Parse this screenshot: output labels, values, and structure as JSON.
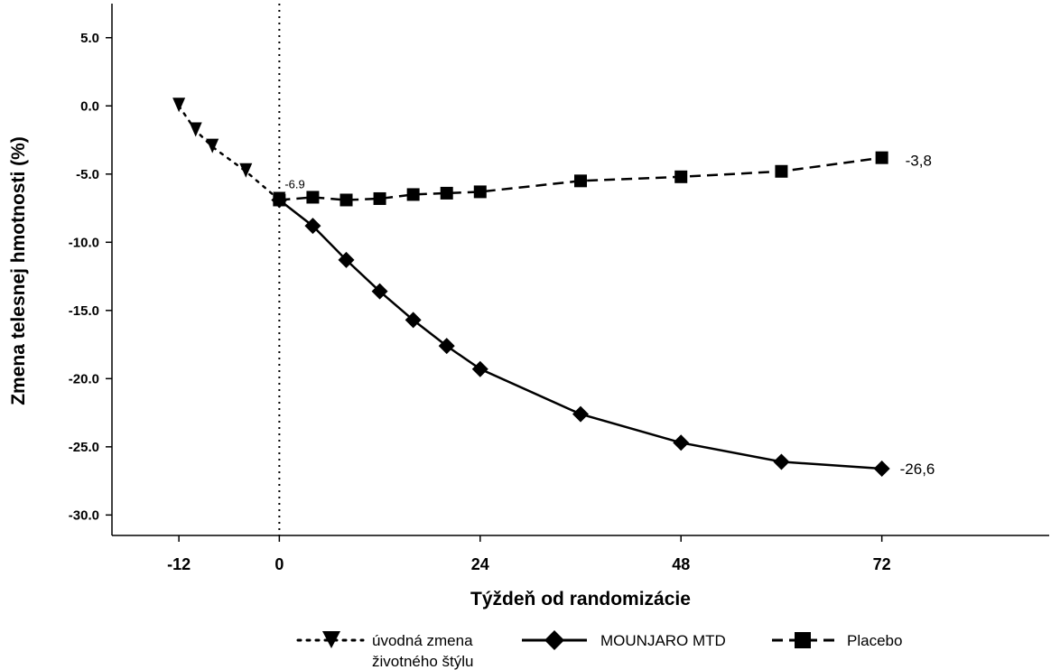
{
  "chart_data": {
    "type": "line",
    "xlabel": "Týždeň od randomizácie",
    "ylabel": "Zmena telesnej hmotnosti (%)",
    "xlim": [
      -20,
      92
    ],
    "ylim": [
      -31.5,
      7.5
    ],
    "x_ticks": [
      {
        "value": -12,
        "label": "-12"
      },
      {
        "value": 0,
        "label": "0"
      },
      {
        "value": 24,
        "label": "24"
      },
      {
        "value": 48,
        "label": "48"
      },
      {
        "value": 72,
        "label": "72"
      }
    ],
    "y_ticks": [
      {
        "value": 5,
        "label": "5.0"
      },
      {
        "value": 0,
        "label": "0.0"
      },
      {
        "value": -5,
        "label": "-5.0"
      },
      {
        "value": -10,
        "label": "-10.0"
      },
      {
        "value": -15,
        "label": "-15.0"
      },
      {
        "value": -20,
        "label": "-20.0"
      },
      {
        "value": -25,
        "label": "-25.0"
      },
      {
        "value": -30,
        "label": "-30.0"
      }
    ],
    "reference_line_x": 0,
    "grid": false,
    "legend_position": "bottom",
    "series": [
      {
        "name": "úvodná zmena životného štýlu",
        "legend_lines": [
          "úvodná zmena",
          "životného štýlu"
        ],
        "marker": "triangle-down",
        "line_style": "dotted",
        "x": [
          -12,
          -10,
          -8,
          -4,
          0
        ],
        "y": [
          0.0,
          -1.8,
          -3.0,
          -4.8,
          -6.9
        ]
      },
      {
        "name": "MOUNJARO MTD",
        "marker": "diamond",
        "line_style": "solid",
        "x": [
          0,
          4,
          8,
          12,
          16,
          20,
          24,
          36,
          48,
          60,
          72
        ],
        "y": [
          -6.9,
          -8.8,
          -11.3,
          -13.6,
          -15.7,
          -17.6,
          -19.3,
          -22.6,
          -24.7,
          -26.1,
          -26.6
        ]
      },
      {
        "name": "Placebo",
        "marker": "square",
        "line_style": "dashed",
        "x": [
          0,
          4,
          8,
          12,
          16,
          20,
          24,
          36,
          48,
          60,
          72
        ],
        "y": [
          -6.9,
          -6.7,
          -6.9,
          -6.8,
          -6.5,
          -6.4,
          -6.3,
          -5.5,
          -5.2,
          -4.8,
          -3.8
        ]
      }
    ],
    "annotations": [
      {
        "text": "-6.9",
        "x": 0,
        "y": -6.9,
        "role": "baseline"
      },
      {
        "text": "-26,6",
        "x": 72,
        "y": -26.6,
        "role": "end-mounjaro"
      },
      {
        "text": "-3,8",
        "x": 72,
        "y": -3.8,
        "role": "end-placebo"
      }
    ]
  }
}
